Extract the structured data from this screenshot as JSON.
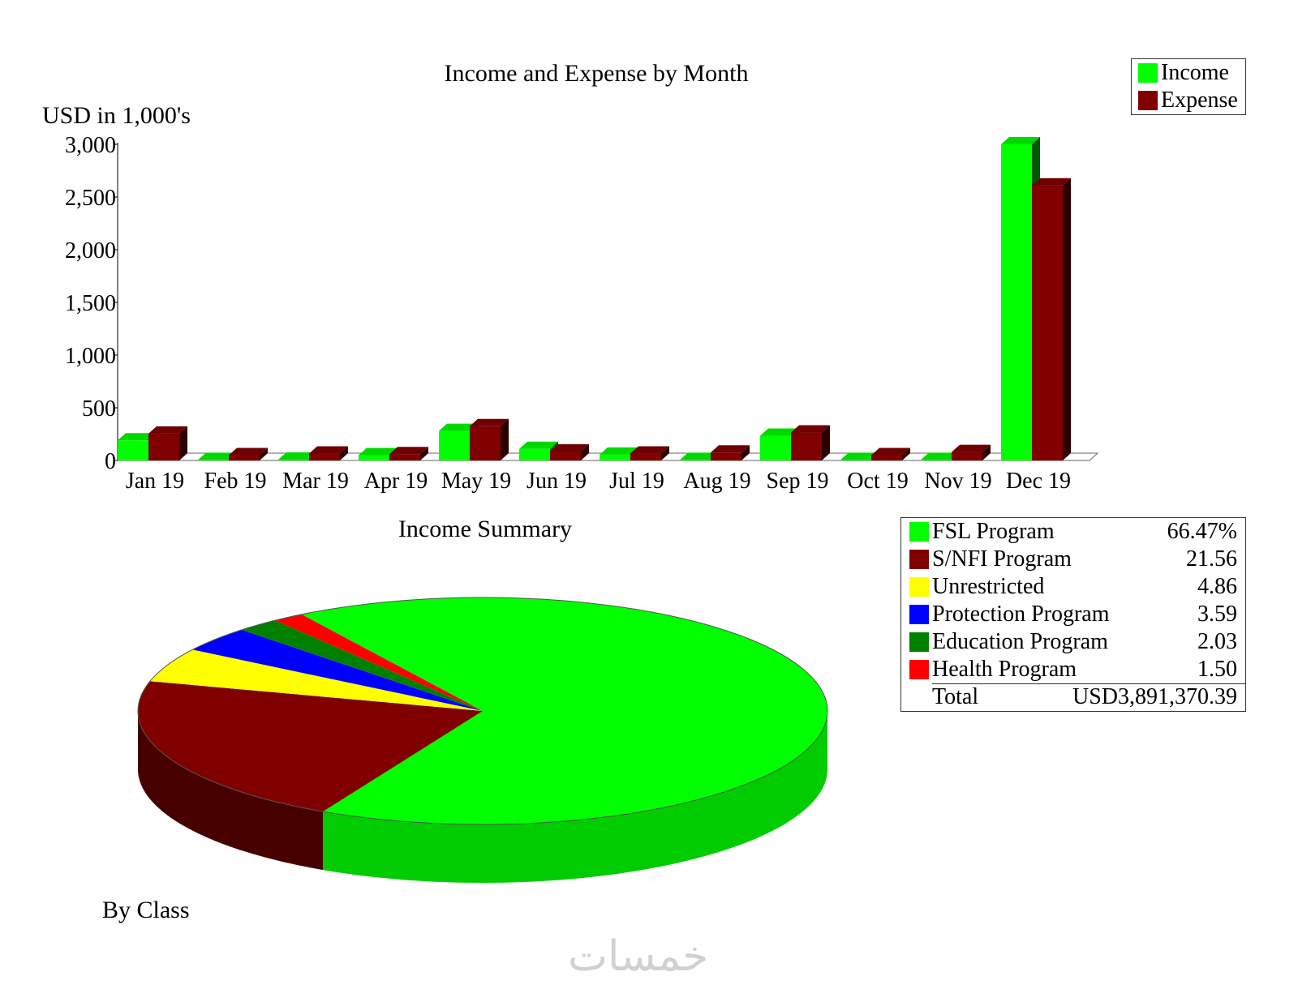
{
  "chart_data": [
    {
      "type": "bar",
      "title": "Income and Expense by Month",
      "ylabel": "USD in 1,000's",
      "xlabel": "",
      "categories": [
        "Jan 19",
        "Feb 19",
        "Mar 19",
        "Apr 19",
        "May 19",
        "Jun 19",
        "Jul 19",
        "Aug 19",
        "Sep 19",
        "Oct 19",
        "Nov 19",
        "Dec 19"
      ],
      "series": [
        {
          "name": "Income",
          "color": "#00ff00",
          "values": [
            190,
            5,
            8,
            50,
            280,
            110,
            55,
            5,
            235,
            5,
            5,
            3000
          ]
        },
        {
          "name": "Expense",
          "color": "#800000",
          "values": [
            255,
            50,
            65,
            60,
            325,
            85,
            65,
            75,
            265,
            50,
            80,
            2610
          ]
        }
      ],
      "ylim": [
        0,
        3000
      ],
      "yticks": [
        "0",
        "500",
        "1,000",
        "1,500",
        "2,000",
        "2,500",
        "3,000"
      ],
      "grid": false,
      "legend_position": "top-right"
    },
    {
      "type": "pie",
      "title": "Income Summary",
      "subtitle": "By Class",
      "slices": [
        {
          "label": "FSL Program",
          "value": 66.47,
          "display": "66.47%",
          "color": "#00ff00"
        },
        {
          "label": "S/NFI Program",
          "value": 21.56,
          "display": "21.56",
          "color": "#800000"
        },
        {
          "label": "Unrestricted",
          "value": 4.86,
          "display": "4.86",
          "color": "#ffff00"
        },
        {
          "label": "Protection Program",
          "value": 3.59,
          "display": "3.59",
          "color": "#0000ff"
        },
        {
          "label": "Education Program",
          "value": 2.03,
          "display": "2.03",
          "color": "#008000"
        },
        {
          "label": "Health Program",
          "value": 1.5,
          "display": "1.50",
          "color": "#ff0000"
        }
      ],
      "total_label": "Total",
      "total_value": "USD3,891,370.39",
      "legend_position": "right"
    }
  ],
  "watermark": "خمسات"
}
